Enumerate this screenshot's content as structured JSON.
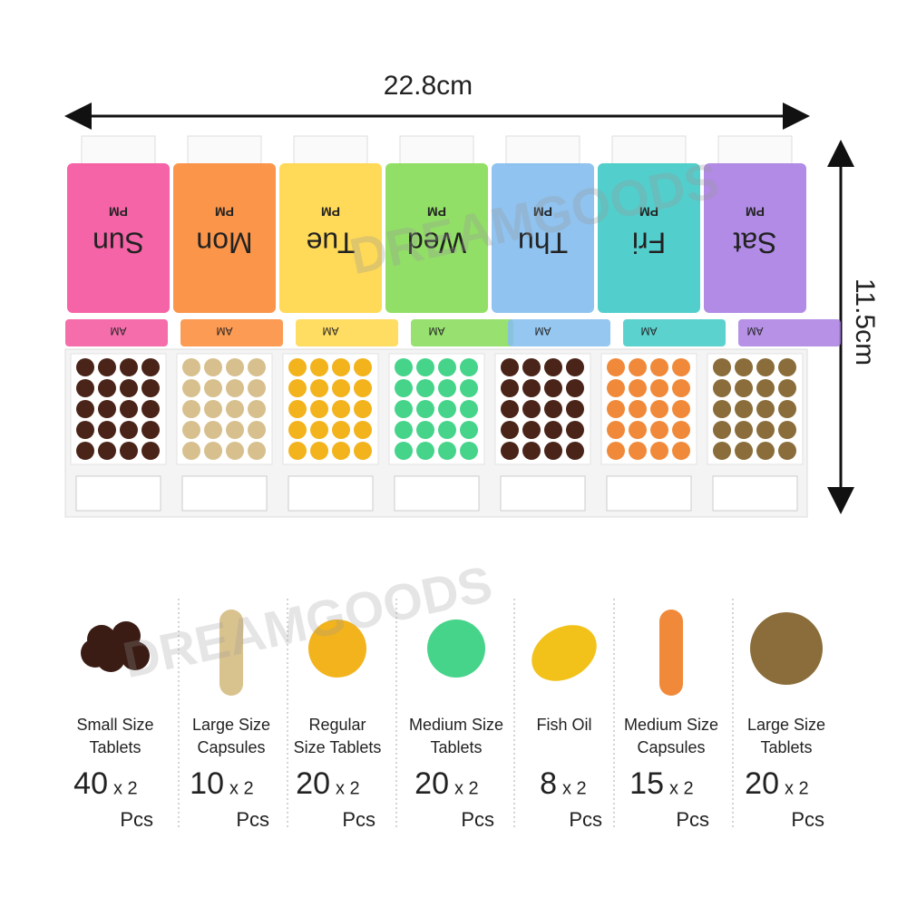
{
  "dimensions": {
    "width": "22.8cm",
    "height": "11.5cm"
  },
  "watermark": "DREAMGOODS",
  "lid_label": "PM",
  "flap_label": "AM",
  "days": [
    "Sun",
    "Mon",
    "Tue",
    "Wed",
    "Thu",
    "Fri",
    "Sat"
  ],
  "items": [
    {
      "name_lines": [
        "Small Size",
        "Tablets"
      ],
      "count": 40,
      "multiplier": "x 2",
      "unit": "Pcs"
    },
    {
      "name_lines": [
        "Large Size",
        "Capsules"
      ],
      "count": 10,
      "multiplier": "x 2",
      "unit": "Pcs"
    },
    {
      "name_lines": [
        "Regular",
        "Size Tablets"
      ],
      "count": 20,
      "multiplier": "x 2",
      "unit": "Pcs"
    },
    {
      "name_lines": [
        "Medium Size",
        "Tablets"
      ],
      "count": 20,
      "multiplier": "x 2",
      "unit": "Pcs"
    },
    {
      "name_lines": [
        "Fish Oil"
      ],
      "count": 8,
      "multiplier": "x 2",
      "unit": "Pcs"
    },
    {
      "name_lines": [
        "Medium Size",
        "Capsules"
      ],
      "count": 15,
      "multiplier": "x 2",
      "unit": "Pcs"
    },
    {
      "name_lines": [
        "Large Size",
        "Tablets"
      ],
      "count": 20,
      "multiplier": "x 2",
      "unit": "Pcs"
    }
  ]
}
